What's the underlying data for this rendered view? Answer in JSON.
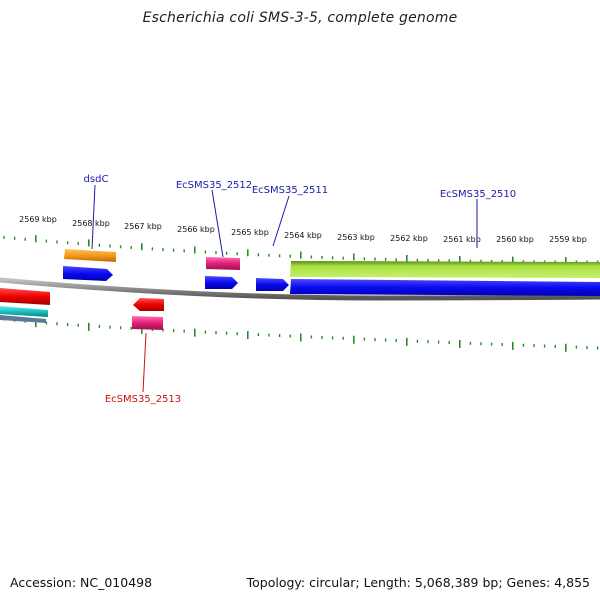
{
  "title": "Escherichia coli SMS-3-5, complete genome",
  "footer": {
    "accession": "Accession: NC_010498",
    "summary": "Topology: circular; Length: 5,068,389 bp; Genes: 4,855"
  },
  "ruler": {
    "labels": [
      "2569 kbp",
      "2568 kbp",
      "2567 kbp",
      "2566 kbp",
      "2565 kbp",
      "2564 kbp",
      "2563 kbp",
      "2562 kbp",
      "2561 kbp",
      "2560 kbp",
      "2559 kbp"
    ]
  },
  "genes": [
    {
      "name": "dsdC",
      "color": "#1a1aaa"
    },
    {
      "name": "EcSMS35_2512",
      "color": "#1a1aaa"
    },
    {
      "name": "EcSMS35_2511",
      "color": "#1a1aaa"
    },
    {
      "name": "EcSMS35_2510",
      "color": "#1a1aaa"
    },
    {
      "name": "EcSMS35_2513",
      "color": "#cc1111"
    }
  ],
  "colors": {
    "backbone": "#8a8a8a",
    "tick": "#2a8a2a",
    "cds_forward": "#1010ee",
    "cds_reverse": "#ee1111",
    "orange": "#f39a1a",
    "magenta": "#e0207a",
    "green": "#8acd2a",
    "teal": "#1cc0c0"
  }
}
